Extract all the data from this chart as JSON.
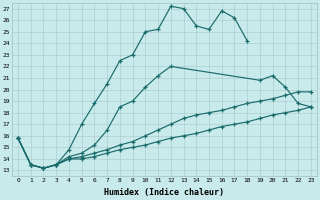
{
  "xlabel": "Humidex (Indice chaleur)",
  "bg_color": "#c8eaea",
  "line_color": "#1a6b6b",
  "marker": "+",
  "xlim": [
    -0.5,
    23.5
  ],
  "ylim": [
    12.5,
    27.5
  ],
  "xticks": [
    0,
    1,
    2,
    3,
    4,
    5,
    6,
    7,
    8,
    9,
    10,
    11,
    12,
    13,
    14,
    15,
    16,
    17,
    18,
    19,
    20,
    21,
    22,
    23
  ],
  "yticks": [
    13,
    14,
    15,
    16,
    17,
    18,
    19,
    20,
    21,
    22,
    23,
    24,
    25,
    26,
    27
  ],
  "curves": [
    {
      "x": [
        0,
        1,
        2,
        3,
        4,
        5,
        6,
        7,
        8,
        9,
        10,
        11,
        12,
        13,
        14,
        15,
        16,
        17,
        18
      ],
      "y": [
        15.8,
        13.5,
        13.2,
        13.5,
        14.8,
        17.0,
        18.8,
        20.5,
        22.5,
        23.0,
        25.0,
        25.2,
        27.2,
        27.0,
        25.5,
        25.2,
        26.8,
        26.2,
        24.2
      ]
    },
    {
      "x": [
        0,
        1,
        2,
        3,
        4,
        5,
        6,
        7,
        8,
        9,
        10,
        11,
        12,
        19,
        20,
        21,
        22,
        23
      ],
      "y": [
        15.8,
        13.5,
        13.2,
        13.5,
        14.2,
        14.5,
        15.2,
        16.5,
        18.5,
        19.0,
        20.2,
        21.2,
        22.0,
        20.8,
        21.2,
        20.2,
        18.8,
        18.5
      ]
    },
    {
      "x": [
        0,
        1,
        2,
        3,
        4,
        5,
        6,
        7,
        8,
        9,
        10,
        11,
        12,
        13,
        14,
        15,
        16,
        17,
        18,
        19,
        20,
        21,
        22,
        23
      ],
      "y": [
        15.8,
        13.5,
        13.2,
        13.5,
        14.0,
        14.2,
        14.5,
        14.8,
        15.2,
        15.5,
        16.0,
        16.5,
        17.0,
        17.5,
        17.8,
        18.0,
        18.2,
        18.5,
        18.8,
        19.0,
        19.2,
        19.5,
        19.8,
        19.8
      ]
    },
    {
      "x": [
        0,
        1,
        2,
        3,
        4,
        5,
        6,
        7,
        8,
        9,
        10,
        11,
        12,
        13,
        14,
        15,
        16,
        17,
        18,
        19,
        20,
        21,
        22,
        23
      ],
      "y": [
        15.8,
        13.5,
        13.2,
        13.5,
        14.0,
        14.0,
        14.2,
        14.5,
        14.8,
        15.0,
        15.2,
        15.5,
        15.8,
        16.0,
        16.2,
        16.5,
        16.8,
        17.0,
        17.2,
        17.5,
        17.8,
        18.0,
        18.2,
        18.5
      ]
    }
  ]
}
